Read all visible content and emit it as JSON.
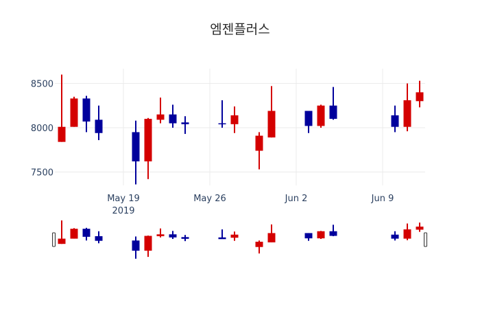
{
  "chart_data": {
    "type": "candlestick",
    "title": "엠젠플러스",
    "xlabel": "",
    "ylabel": "",
    "ylim": [
      7280,
      8650
    ],
    "y_ticks": [
      7500,
      8000,
      8500
    ],
    "y_tick_labels": [
      "7500",
      "8000",
      "8500"
    ],
    "x_ticks": [
      {
        "date": "2019-05-19",
        "label": "May 19",
        "sublabel": "2019"
      },
      {
        "date": "2019-05-26",
        "label": "May 26",
        "sublabel": ""
      },
      {
        "date": "2019-06-02",
        "label": "Jun 2",
        "sublabel": ""
      },
      {
        "date": "2019-06-09",
        "label": "Jun 9",
        "sublabel": ""
      }
    ],
    "grid": true,
    "legend": null,
    "rangeslider": true,
    "increasing_color": "#d40000",
    "decreasing_color": "#00009c",
    "candles": [
      {
        "date": "2019-05-14",
        "open": 7840,
        "high": 8600,
        "low": 7840,
        "close": 8010
      },
      {
        "date": "2019-05-15",
        "open": 8010,
        "high": 8350,
        "low": 8010,
        "close": 8330
      },
      {
        "date": "2019-05-16",
        "open": 8330,
        "high": 8360,
        "low": 7950,
        "close": 8070
      },
      {
        "date": "2019-05-17",
        "open": 8090,
        "high": 8250,
        "low": 7860,
        "close": 7940
      },
      {
        "date": "2019-05-20",
        "open": 7950,
        "high": 8080,
        "low": 7360,
        "close": 7620
      },
      {
        "date": "2019-05-21",
        "open": 7620,
        "high": 8110,
        "low": 7420,
        "close": 8100
      },
      {
        "date": "2019-05-22",
        "open": 8090,
        "high": 8340,
        "low": 8050,
        "close": 8150
      },
      {
        "date": "2019-05-23",
        "open": 8150,
        "high": 8260,
        "low": 8000,
        "close": 8050
      },
      {
        "date": "2019-05-24",
        "open": 8060,
        "high": 8130,
        "low": 7930,
        "close": 8040
      },
      {
        "date": "2019-05-27",
        "open": 8050,
        "high": 8310,
        "low": 8000,
        "close": 8040
      },
      {
        "date": "2019-05-28",
        "open": 8040,
        "high": 8240,
        "low": 7940,
        "close": 8140
      },
      {
        "date": "2019-05-30",
        "open": 7740,
        "high": 7950,
        "low": 7530,
        "close": 7910
      },
      {
        "date": "2019-05-31",
        "open": 7890,
        "high": 8470,
        "low": 7890,
        "close": 8190
      },
      {
        "date": "2019-06-03",
        "open": 8190,
        "high": 8190,
        "low": 7940,
        "close": 8020
      },
      {
        "date": "2019-06-04",
        "open": 8020,
        "high": 8260,
        "low": 8000,
        "close": 8250
      },
      {
        "date": "2019-06-05",
        "open": 8250,
        "high": 8460,
        "low": 8090,
        "close": 8100
      },
      {
        "date": "2019-06-10",
        "open": 8140,
        "high": 8250,
        "low": 7950,
        "close": 8010
      },
      {
        "date": "2019-06-11",
        "open": 8010,
        "high": 8500,
        "low": 7960,
        "close": 8310
      },
      {
        "date": "2019-06-12",
        "open": 8300,
        "high": 8530,
        "low": 8230,
        "close": 8400
      }
    ]
  }
}
